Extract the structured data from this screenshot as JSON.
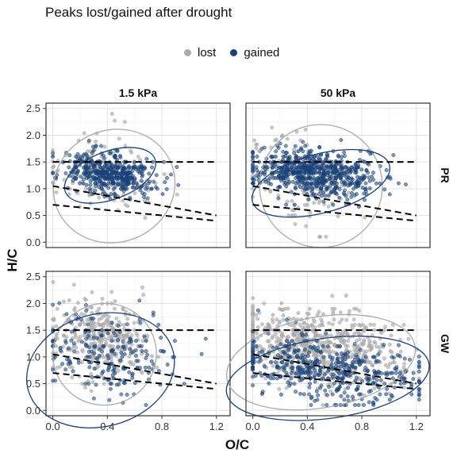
{
  "chart_data": {
    "type": "scatter",
    "title": "Peaks lost/gained after drought",
    "xlabel": "O/C",
    "ylabel": "H/C",
    "xlim": [
      -0.05,
      1.3
    ],
    "ylim": [
      -0.1,
      2.6
    ],
    "x_ticks": [
      "0.0",
      "0.4",
      "0.8",
      "1.2"
    ],
    "y_ticks": [
      "0.0",
      "0.5",
      "1.0",
      "1.5",
      "2.0",
      "2.5"
    ],
    "legend": {
      "position": "top",
      "entries": [
        {
          "label": "lost",
          "color": "#ababab"
        },
        {
          "label": "gained",
          "color": "#1a4279"
        }
      ]
    },
    "grid": true,
    "columns": [
      "1.5 kPa",
      "50 kPa"
    ],
    "rows": [
      "PR",
      "GW"
    ],
    "reference_lines": [
      {
        "type": "horizontal",
        "y": 1.5
      },
      {
        "type": "segment",
        "from": [
          0,
          1.05
        ],
        "to": [
          1.2,
          0.5
        ]
      },
      {
        "type": "segment",
        "from": [
          0,
          0.7
        ],
        "to": [
          1.2,
          0.4
        ]
      }
    ],
    "panels": [
      {
        "column": "1.5 kPa",
        "row": "PR",
        "series": [
          {
            "name": "lost",
            "approx_points": 120,
            "center": [
              0.35,
              1.35
            ],
            "ellipse": {
              "center": [
                0.45,
                1.05
              ],
              "rx": 0.45,
              "ry": 1.05,
              "tilt": -20
            }
          },
          {
            "name": "gained",
            "approx_points": 450,
            "center": [
              0.42,
              1.28
            ],
            "ellipse": {
              "center": [
                0.42,
                1.25
              ],
              "rx": 0.35,
              "ry": 0.45,
              "tilt": -20
            }
          }
        ]
      },
      {
        "column": "50 kPa",
        "row": "PR",
        "series": [
          {
            "name": "lost",
            "approx_points": 130,
            "center": [
              0.35,
              1.2
            ],
            "ellipse": {
              "center": [
                0.5,
                1.05
              ],
              "rx": 0.45,
              "ry": 1.15,
              "tilt": -20
            }
          },
          {
            "name": "gained",
            "approx_points": 650,
            "center": [
              0.45,
              1.3
            ],
            "ellipse": {
              "center": [
                0.5,
                1.1
              ],
              "rx": 0.52,
              "ry": 0.55,
              "tilt": -15
            }
          }
        ]
      },
      {
        "column": "1.5 kPa",
        "row": "GW",
        "series": [
          {
            "name": "lost",
            "approx_points": 350,
            "center": [
              0.35,
              1.35
            ],
            "ellipse": {
              "center": [
                0.38,
                1.05
              ],
              "rx": 0.38,
              "ry": 0.95,
              "tilt": -15
            }
          },
          {
            "name": "gained",
            "approx_points": 200,
            "center": [
              0.4,
              1.05
            ],
            "ellipse": {
              "center": [
                0.35,
                0.75
              ],
              "rx": 0.55,
              "ry": 1.05,
              "tilt": -15
            }
          }
        ]
      },
      {
        "column": "50 kPa",
        "row": "GW",
        "series": [
          {
            "name": "lost",
            "approx_points": 650,
            "center": [
              0.45,
              1.2
            ],
            "ellipse": {
              "center": [
                0.5,
                0.9
              ],
              "rx": 0.7,
              "ry": 0.85,
              "tilt": -10
            }
          },
          {
            "name": "gained",
            "approx_points": 450,
            "center": [
              0.55,
              0.75
            ],
            "ellipse": {
              "center": [
                0.55,
                0.6
              ],
              "rx": 0.75,
              "ry": 0.75,
              "tilt": -8
            }
          }
        ]
      }
    ]
  }
}
